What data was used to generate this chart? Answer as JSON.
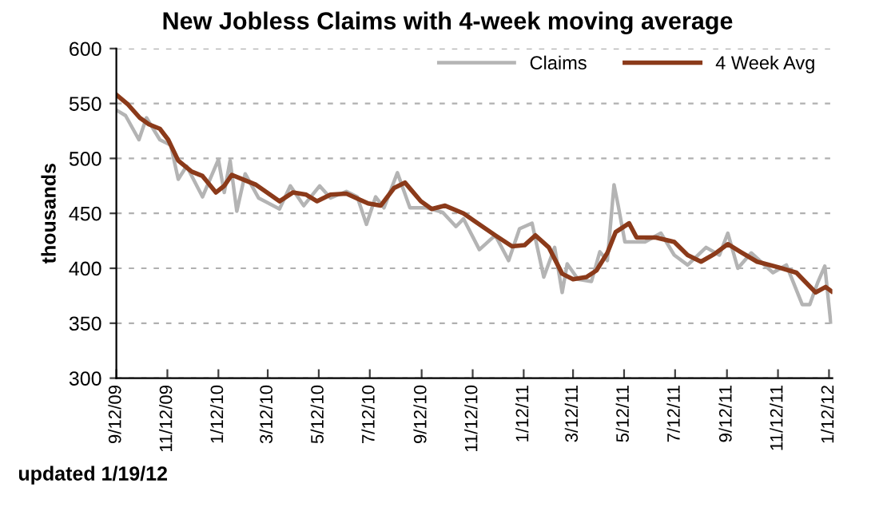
{
  "chart_data": {
    "type": "line",
    "title": "New Jobless Claims with 4-week moving average",
    "ylabel": "thousands",
    "annotations": [
      "updated 1/19/12"
    ],
    "series": [
      {
        "name": "Claims",
        "color": "#b4b4b4",
        "x": [
          "2009-09-12",
          "2009-09-23",
          "2009-10-09",
          "2009-10-18",
          "2009-11-03",
          "2009-11-16",
          "2009-11-25",
          "2009-12-05",
          "2009-12-24",
          "2010-01-12",
          "2010-01-19",
          "2010-01-26",
          "2010-02-03",
          "2010-02-13",
          "2010-03-01",
          "2010-03-26",
          "2010-04-08",
          "2010-04-24",
          "2010-05-13",
          "2010-05-26",
          "2010-06-14",
          "2010-06-27",
          "2010-07-08",
          "2010-07-19",
          "2010-07-29",
          "2010-08-14",
          "2010-08-29",
          "2010-09-18",
          "2010-10-07",
          "2010-10-23",
          "2010-11-01",
          "2010-11-20",
          "2010-12-09",
          "2010-12-25",
          "2011-01-07",
          "2011-01-22",
          "2011-02-05",
          "2011-02-18",
          "2011-02-27",
          "2011-03-05",
          "2011-03-18",
          "2011-04-03",
          "2011-04-13",
          "2011-04-22",
          "2011-04-30",
          "2011-05-05",
          "2011-05-13",
          "2011-06-06",
          "2011-06-25",
          "2011-07-11",
          "2011-07-27",
          "2011-08-18",
          "2011-09-03",
          "2011-09-13",
          "2011-09-25",
          "2011-10-11",
          "2011-11-06",
          "2011-11-22",
          "2011-12-11",
          "2011-12-20",
          "2011-12-30",
          "2012-01-07",
          "2012-01-14"
        ],
        "values": [
          544,
          539,
          517,
          537,
          517,
          512,
          481,
          493,
          465,
          499,
          469,
          498,
          452,
          486,
          464,
          454,
          475,
          457,
          475,
          464,
          470,
          465,
          440,
          465,
          455,
          487,
          455,
          455,
          451,
          438,
          445,
          417,
          430,
          407,
          436,
          441,
          392,
          419,
          378,
          404,
          390,
          388,
          415,
          407,
          476,
          457,
          424,
          424,
          432,
          412,
          403,
          419,
          412,
          432,
          400,
          414,
          396,
          403,
          367,
          367,
          388,
          402,
          351
        ]
      },
      {
        "name": "4 Week Avg",
        "color": "#8b3a1a",
        "x": [
          "2009-09-12",
          "2009-09-26",
          "2009-10-10",
          "2009-10-21",
          "2009-11-03",
          "2009-11-13",
          "2009-11-25",
          "2009-12-11",
          "2009-12-24",
          "2010-01-09",
          "2010-01-19",
          "2010-01-28",
          "2010-02-13",
          "2010-02-26",
          "2010-03-11",
          "2010-03-26",
          "2010-04-11",
          "2010-04-27",
          "2010-05-10",
          "2010-05-26",
          "2010-06-14",
          "2010-07-10",
          "2010-07-25",
          "2010-08-10",
          "2010-08-23",
          "2010-09-11",
          "2010-09-24",
          "2010-10-10",
          "2010-11-01",
          "2010-11-14",
          "2010-12-09",
          "2010-12-29",
          "2011-01-13",
          "2011-01-26",
          "2011-02-11",
          "2011-02-27",
          "2011-03-12",
          "2011-03-28",
          "2011-04-09",
          "2011-04-22",
          "2011-05-02",
          "2011-05-18",
          "2011-05-27",
          "2011-06-19",
          "2011-07-11",
          "2011-07-27",
          "2011-08-12",
          "2011-08-28",
          "2011-09-13",
          "2011-09-28",
          "2011-10-18",
          "2011-11-12",
          "2011-12-04",
          "2011-12-27",
          "2012-01-08",
          "2012-01-15"
        ],
        "values": [
          558,
          549,
          537,
          531,
          527,
          517,
          498,
          488,
          484,
          469,
          475,
          485,
          480,
          476,
          469,
          461,
          469,
          467,
          461,
          467,
          468,
          459,
          457,
          473,
          478,
          461,
          454,
          457,
          450,
          443,
          430,
          420,
          421,
          430,
          419,
          395,
          390,
          392,
          398,
          414,
          433,
          441,
          428,
          428,
          424,
          412,
          406,
          413,
          422,
          415,
          406,
          401,
          396,
          378,
          383,
          379
        ]
      }
    ],
    "xlim": [
      "2009-09-12",
      "2012-01-16"
    ],
    "xticks": [
      {
        "value": "2009-09-12",
        "label": "9/12/09"
      },
      {
        "value": "2009-11-12",
        "label": "11/12/09"
      },
      {
        "value": "2010-01-12",
        "label": "1/12/10"
      },
      {
        "value": "2010-03-12",
        "label": "3/12/10"
      },
      {
        "value": "2010-05-12",
        "label": "5/12/10"
      },
      {
        "value": "2010-07-12",
        "label": "7/12/10"
      },
      {
        "value": "2010-09-12",
        "label": "9/12/10"
      },
      {
        "value": "2010-11-12",
        "label": "11/12/10"
      },
      {
        "value": "2011-01-12",
        "label": "1/12/11"
      },
      {
        "value": "2011-03-12",
        "label": "3/12/11"
      },
      {
        "value": "2011-05-12",
        "label": "5/12/11"
      },
      {
        "value": "2011-07-12",
        "label": "7/12/11"
      },
      {
        "value": "2011-09-12",
        "label": "9/12/11"
      },
      {
        "value": "2011-11-12",
        "label": "11/12/11"
      },
      {
        "value": "2012-01-12",
        "label": "1/12/12"
      }
    ],
    "ylim": [
      300,
      600
    ],
    "yticks": [
      300,
      350,
      400,
      450,
      500,
      550,
      600
    ],
    "grid": "y",
    "legend": "top right",
    "marker": "none",
    "line_style": "solid"
  }
}
